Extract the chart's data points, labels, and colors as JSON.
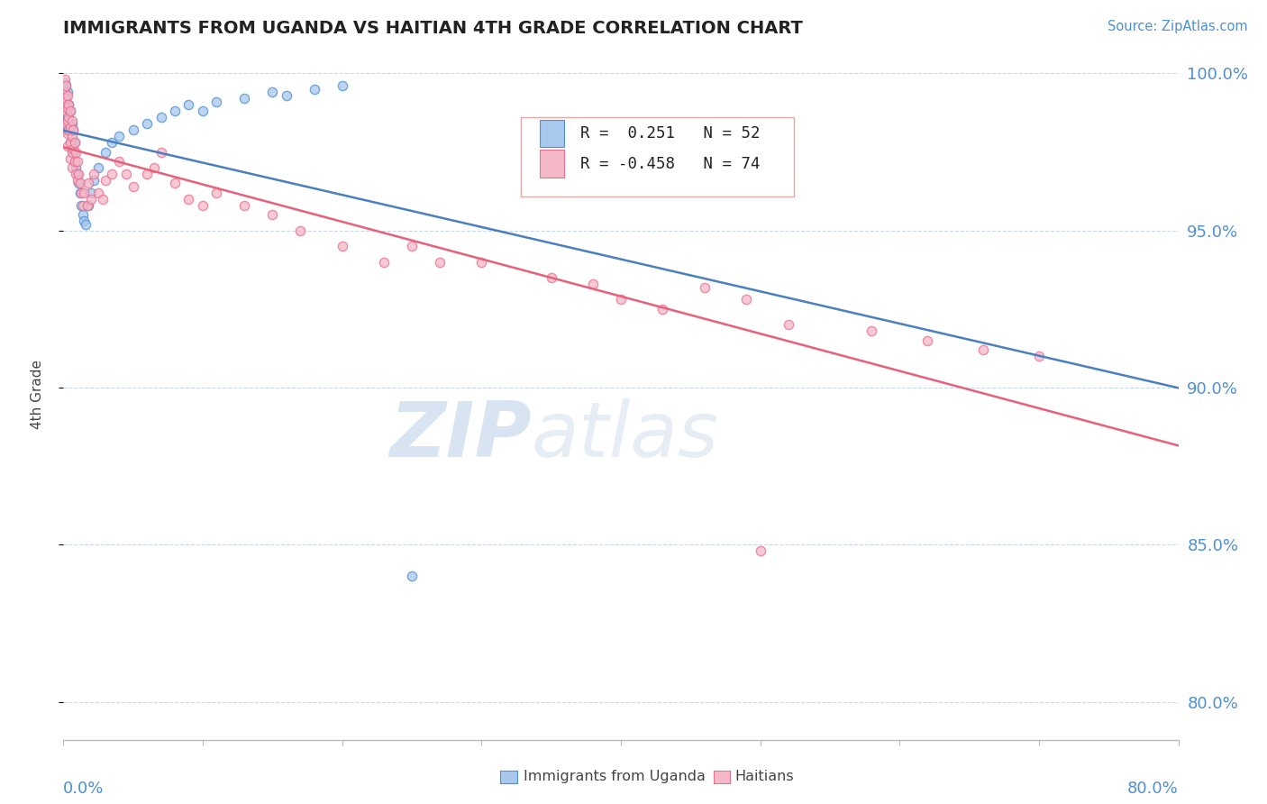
{
  "title": "IMMIGRANTS FROM UGANDA VS HAITIAN 4TH GRADE CORRELATION CHART",
  "source": "Source: ZipAtlas.com",
  "ylabel": "4th Grade",
  "xlim": [
    0.0,
    0.8
  ],
  "ylim": [
    0.788,
    1.008
  ],
  "yticks": [
    0.8,
    0.85,
    0.9,
    0.95,
    1.0
  ],
  "ytick_labels": [
    "80.0%",
    "85.0%",
    "90.0%",
    "95.0%",
    "100.0%"
  ],
  "legend_r_uganda": "0.251",
  "legend_n_uganda": "52",
  "legend_r_haitian": "-0.458",
  "legend_n_haitian": "74",
  "watermark_zip": "ZIP",
  "watermark_atlas": "atlas",
  "uganda_color": "#a8c8ee",
  "haitian_color": "#f5b8c8",
  "uganda_edge_color": "#5090d0",
  "haitian_edge_color": "#e87090",
  "uganda_line_color": "#4a7fc0",
  "haitian_line_color": "#e8607a",
  "axis_label_color": "#5090d0",
  "grid_color": "#c8d8e8",
  "uganda_scatter_x": [
    0.001,
    0.001,
    0.001,
    0.001,
    0.002,
    0.002,
    0.002,
    0.002,
    0.002,
    0.003,
    0.003,
    0.003,
    0.003,
    0.004,
    0.004,
    0.005,
    0.005,
    0.005,
    0.006,
    0.006,
    0.007,
    0.007,
    0.008,
    0.008,
    0.009,
    0.01,
    0.011,
    0.012,
    0.013,
    0.014,
    0.015,
    0.016,
    0.018,
    0.02,
    0.022,
    0.025,
    0.03,
    0.035,
    0.04,
    0.05,
    0.06,
    0.07,
    0.08,
    0.09,
    0.1,
    0.11,
    0.13,
    0.15,
    0.16,
    0.18,
    0.2,
    0.25
  ],
  "uganda_scatter_y": [
    0.997,
    0.994,
    0.991,
    0.988,
    0.996,
    0.992,
    0.989,
    0.985,
    0.982,
    0.994,
    0.99,
    0.986,
    0.982,
    0.99,
    0.984,
    0.988,
    0.983,
    0.978,
    0.984,
    0.978,
    0.982,
    0.975,
    0.978,
    0.972,
    0.97,
    0.968,
    0.965,
    0.962,
    0.958,
    0.955,
    0.953,
    0.952,
    0.958,
    0.962,
    0.966,
    0.97,
    0.975,
    0.978,
    0.98,
    0.982,
    0.984,
    0.986,
    0.988,
    0.99,
    0.988,
    0.991,
    0.992,
    0.994,
    0.993,
    0.995,
    0.996,
    0.84
  ],
  "haitian_scatter_x": [
    0.001,
    0.001,
    0.001,
    0.002,
    0.002,
    0.002,
    0.002,
    0.003,
    0.003,
    0.003,
    0.003,
    0.003,
    0.004,
    0.004,
    0.004,
    0.005,
    0.005,
    0.005,
    0.005,
    0.006,
    0.006,
    0.006,
    0.006,
    0.007,
    0.007,
    0.008,
    0.008,
    0.009,
    0.009,
    0.01,
    0.01,
    0.011,
    0.012,
    0.013,
    0.014,
    0.015,
    0.017,
    0.018,
    0.02,
    0.022,
    0.025,
    0.028,
    0.03,
    0.035,
    0.04,
    0.045,
    0.05,
    0.06,
    0.065,
    0.07,
    0.08,
    0.09,
    0.1,
    0.11,
    0.13,
    0.15,
    0.17,
    0.2,
    0.23,
    0.25,
    0.27,
    0.3,
    0.35,
    0.38,
    0.4,
    0.43,
    0.46,
    0.49,
    0.52,
    0.58,
    0.62,
    0.66,
    0.7,
    0.5
  ],
  "haitian_scatter_y": [
    0.998,
    0.994,
    0.99,
    0.996,
    0.992,
    0.988,
    0.984,
    0.993,
    0.989,
    0.985,
    0.981,
    0.977,
    0.99,
    0.986,
    0.982,
    0.988,
    0.983,
    0.978,
    0.973,
    0.985,
    0.98,
    0.975,
    0.97,
    0.982,
    0.976,
    0.978,
    0.972,
    0.975,
    0.968,
    0.972,
    0.966,
    0.968,
    0.965,
    0.962,
    0.958,
    0.962,
    0.958,
    0.965,
    0.96,
    0.968,
    0.962,
    0.96,
    0.966,
    0.968,
    0.972,
    0.968,
    0.964,
    0.968,
    0.97,
    0.975,
    0.965,
    0.96,
    0.958,
    0.962,
    0.958,
    0.955,
    0.95,
    0.945,
    0.94,
    0.945,
    0.94,
    0.94,
    0.935,
    0.933,
    0.928,
    0.925,
    0.932,
    0.928,
    0.92,
    0.918,
    0.915,
    0.912,
    0.91,
    0.848
  ]
}
